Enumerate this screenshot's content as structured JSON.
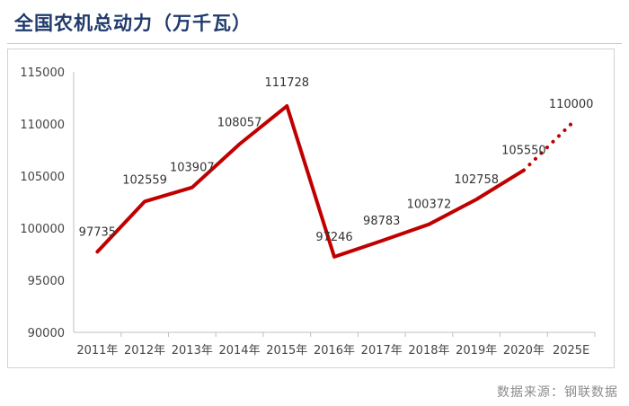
{
  "chart_data": {
    "type": "line",
    "title": "全国农机总动力（万千瓦）",
    "categories": [
      "2011年",
      "2012年",
      "2013年",
      "2014年",
      "2015年",
      "2016年",
      "2017年",
      "2018年",
      "2019年",
      "2020年",
      "2025E"
    ],
    "series": [
      {
        "values": [
          97735,
          102559,
          103907,
          108057,
          111728,
          97246,
          98783,
          100372,
          102758,
          105550,
          null
        ],
        "style": "solid",
        "color": "#c00000"
      },
      {
        "values": [
          null,
          null,
          null,
          null,
          null,
          null,
          null,
          null,
          null,
          105550,
          110000
        ],
        "style": "dotted",
        "color": "#c00000"
      }
    ],
    "data_labels": [
      "97735",
      "102559",
      "103907",
      "108057",
      "111728",
      "97246",
      "98783",
      "100372",
      "102758",
      "105550",
      "110000"
    ],
    "yticks": [
      "115000",
      "110000",
      "105000",
      "100000",
      "95000",
      "90000"
    ],
    "ylim": [
      90000,
      115000
    ],
    "grid": false,
    "legend": "none"
  },
  "source": "数据来源：钢联数据"
}
